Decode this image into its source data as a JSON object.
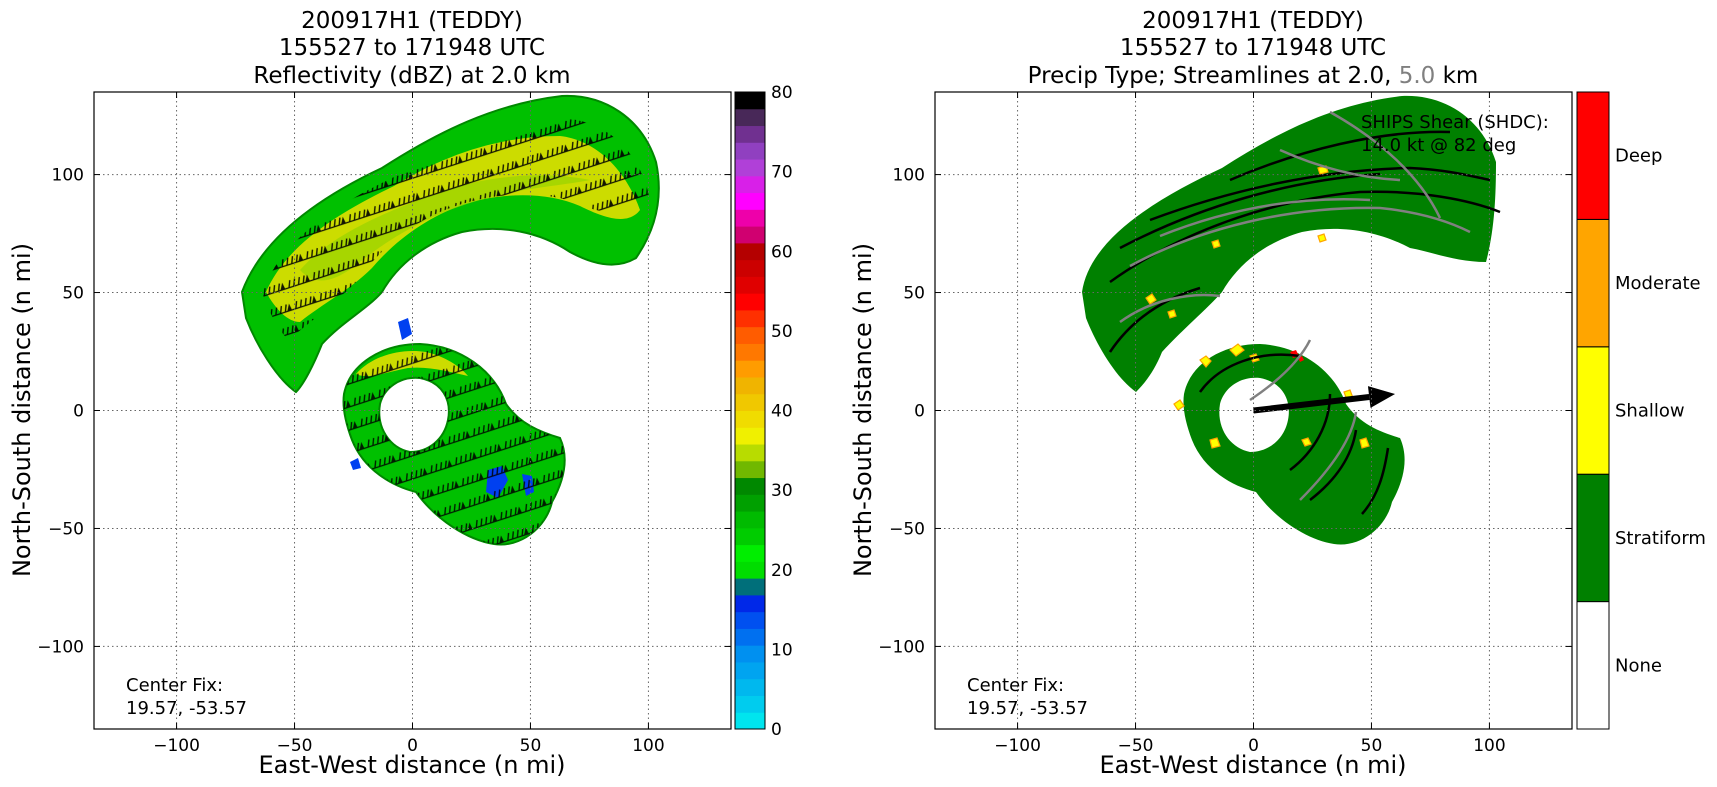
{
  "chart_data": [
    {
      "type": "heatmap",
      "title_lines": [
        "200917H1 (TEDDY)",
        "155527 to 171948 UTC",
        "Reflectivity (dBZ) at 2.0 km"
      ],
      "xlabel": "East-West distance (n mi)",
      "ylabel": "North-South distance (n mi)",
      "xlim": [
        -135,
        135
      ],
      "ylim": [
        -135,
        135
      ],
      "xticks": [
        -100,
        -50,
        0,
        50,
        100
      ],
      "yticks": [
        -100,
        -50,
        0,
        50,
        100
      ],
      "grid": true,
      "annotation": [
        "Center Fix:",
        "19.57, -53.57"
      ],
      "colorbar": {
        "range": [
          0,
          80
        ],
        "ticks": [
          0,
          10,
          20,
          30,
          40,
          50,
          60,
          70,
          80
        ],
        "colors": [
          "#00e5ee",
          "#00ccee",
          "#00b8ee",
          "#00a4f0",
          "#0090f0",
          "#0070f0",
          "#0050f0",
          "#0028e8",
          "#006f7a",
          "#00dd00",
          "#00ee00",
          "#00cc00",
          "#00bb00",
          "#00a000",
          "#008800",
          "#70b800",
          "#b8dc00",
          "#f0f000",
          "#f0dc00",
          "#f0c800",
          "#f0b400",
          "#ff9c00",
          "#ff7800",
          "#ff5c00",
          "#ff3000",
          "#ff0000",
          "#e00000",
          "#cc0000",
          "#b40000",
          "#d00070",
          "#ee00aa",
          "#ff00ff",
          "#d820e8",
          "#b040d8",
          "#9040c0",
          "#703090",
          "#482858",
          "#000000"
        ]
      }
    },
    {
      "type": "heatmap",
      "title_lines": [
        "200917H1 (TEDDY)",
        "155527 to 171948 UTC"
      ],
      "title_line3": {
        "prefix": "Precip Type; Streamlines at 2.0, ",
        "highlight": "5.0",
        "suffix": " km",
        "highlight_color": "#808080"
      },
      "xlabel": "East-West distance (n mi)",
      "ylabel": "North-South distance (n mi)",
      "xlim": [
        -135,
        135
      ],
      "ylim": [
        -135,
        135
      ],
      "xticks": [
        -100,
        -50,
        0,
        50,
        100
      ],
      "yticks": [
        -100,
        -50,
        0,
        50,
        100
      ],
      "grid": true,
      "annotation": [
        "Center Fix:",
        "19.57, -53.57"
      ],
      "shear_label": [
        "SHIPS Shear (SHDC):",
        "14.0 kt @ 82 deg"
      ],
      "shear_vector": {
        "from": [
          0,
          0
        ],
        "to": [
          60,
          7
        ]
      },
      "categories": [
        {
          "label": "None",
          "color": "#ffffff"
        },
        {
          "label": "Stratiform",
          "color": "#008000"
        },
        {
          "label": "Shallow",
          "color": "#ffff00"
        },
        {
          "label": "Moderate",
          "color": "#ffa500"
        },
        {
          "label": "Deep",
          "color": "#ff0000"
        }
      ]
    }
  ]
}
